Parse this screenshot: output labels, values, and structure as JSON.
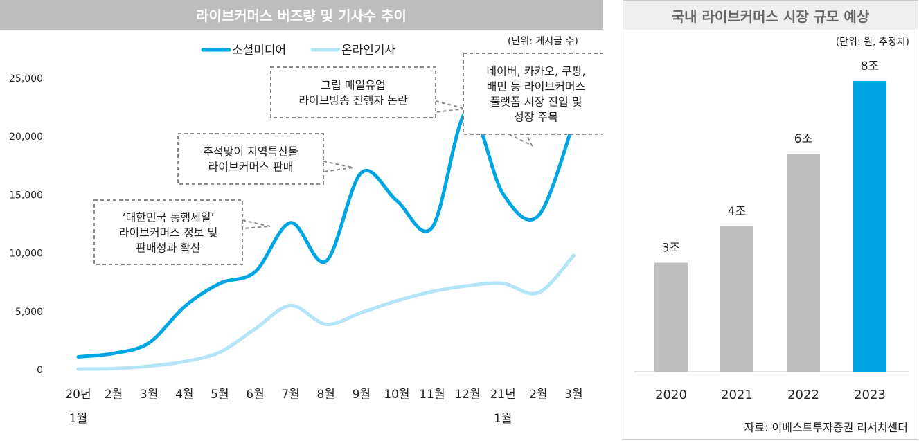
{
  "left": {
    "title": "라이브커머스 버즈량 및 기사수 추이",
    "unit": "(단위: 게시글 수)"
  },
  "right": {
    "title": "국내 라이브커머스 시장 규모 예상",
    "unit": "(단위: 원, 추정치)",
    "source": "자료: 이베스트투자증권 리서치센터"
  },
  "colors": {
    "social": "#00a6e3",
    "news": "#b3e4f7",
    "bar_gray": "#bdbdbd",
    "bar_highlight": "#00a6e3"
  },
  "chart_data": [
    {
      "type": "line",
      "title": "라이브커머스 버즈량 및 기사수 추이",
      "categories": [
        "20년 1월",
        "2월",
        "3월",
        "4월",
        "5월",
        "6월",
        "7월",
        "8월",
        "9월",
        "10월",
        "11월",
        "12월",
        "21년 1월",
        "2월",
        "3월"
      ],
      "ylim": [
        0,
        25000
      ],
      "yticks": [
        "0",
        "5,000",
        "10,000",
        "15,000",
        "20,000",
        "25,000"
      ],
      "ytick_values": [
        0,
        5000,
        10000,
        15000,
        20000,
        25000
      ],
      "legend_position": "top",
      "series": [
        {
          "name": "소셜미디어",
          "values": [
            1100,
            1400,
            2300,
            5400,
            7400,
            8400,
            12600,
            9300,
            16900,
            14500,
            12200,
            22300,
            15100,
            13200,
            21200
          ]
        },
        {
          "name": "온라인기사",
          "values": [
            50,
            100,
            300,
            700,
            1500,
            3500,
            5500,
            3900,
            4900,
            5900,
            6700,
            7200,
            7400,
            6600,
            9800
          ]
        }
      ],
      "annotations": [
        {
          "text": [
            "‘대한민국 동행세일’",
            "라이브커머스 정보 및",
            "판매성과 확산"
          ]
        },
        {
          "text": [
            "추석맞이 지역특산물",
            "라이브커머스 판매"
          ]
        },
        {
          "text": [
            "그립 매일유업",
            "라이브방송 진행자 논란"
          ]
        },
        {
          "text": [
            "네이버, 카카오, 쿠팡,",
            "배민 등 라이브커머스",
            "플랫폼 시장 진입 및",
            "성장 주목"
          ]
        }
      ]
    },
    {
      "type": "bar",
      "title": "국내 라이브커머스 시장 규모 예상",
      "categories": [
        "2020",
        "2021",
        "2022",
        "2023"
      ],
      "values": [
        3,
        4,
        6,
        8
      ],
      "data_labels": [
        "3조",
        "4조",
        "6조",
        "8조"
      ],
      "highlight": "2023"
    }
  ]
}
